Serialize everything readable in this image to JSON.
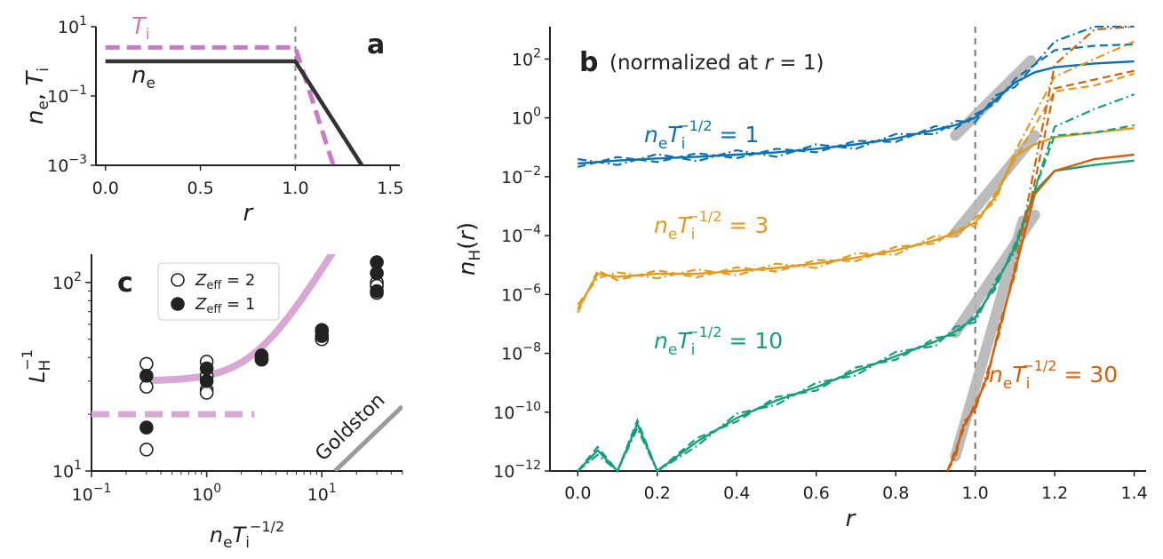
{
  "chart_data": [
    {
      "panel": "a",
      "type": "line",
      "xlabel": "r",
      "ylabel": "n_e, T_i",
      "xlim": [
        -0.05,
        1.55
      ],
      "ylim_log10": [
        -3,
        1
      ],
      "xticks": [
        0.0,
        0.5,
        1.0,
        1.5
      ],
      "xtick_labels": [
        "0.0",
        "0.5",
        "1.0",
        "1.5"
      ],
      "yticks_log10": [
        -3,
        -1,
        1
      ],
      "vline_x": 1.0,
      "series": [
        {
          "name": "T_i",
          "label": "T",
          "label_sub": "i",
          "color": "#cc79c4",
          "style": "dashed",
          "x": [
            0.0,
            1.0,
            1.2
          ],
          "log10_y": [
            0.4,
            0.4,
            -3.0
          ]
        },
        {
          "name": "n_e",
          "label": "n",
          "label_sub": "e",
          "color": "#333333",
          "style": "solid",
          "x": [
            0.0,
            1.0,
            1.35
          ],
          "log10_y": [
            0.0,
            0.0,
            -3.0
          ]
        }
      ]
    },
    {
      "panel": "b",
      "type": "line",
      "note": "(normalized at ",
      "note_var": "r",
      "note_end": " = 1)",
      "xlabel": "r",
      "ylabel": "n_H(r)",
      "xlim": [
        -0.07,
        1.43
      ],
      "ylim_log10": [
        -12,
        3.1
      ],
      "xticks": [
        0.0,
        0.2,
        0.4,
        0.6,
        0.8,
        1.0,
        1.2,
        1.4
      ],
      "xtick_labels": [
        "0.0",
        "0.2",
        "0.4",
        "0.6",
        "0.8",
        "1.0",
        "1.2",
        "1.4"
      ],
      "yticks_log10": [
        -12,
        -10,
        -8,
        -6,
        -4,
        -2,
        0,
        2
      ],
      "vline_x": 1.0,
      "series": [
        {
          "param": "1",
          "color": "#0b72b2",
          "x": [
            0.0,
            0.1,
            0.2,
            0.3,
            0.4,
            0.5,
            0.6,
            0.7,
            0.8,
            0.9,
            0.95,
            1.0,
            1.05,
            1.1,
            1.15,
            1.2,
            1.3,
            1.4
          ],
          "log10_y": [
            -1.55,
            -1.45,
            -1.38,
            -1.32,
            -1.25,
            -1.17,
            -1.05,
            -0.9,
            -0.7,
            -0.4,
            -0.25,
            0.0,
            0.6,
            1.2,
            1.55,
            1.72,
            1.85,
            1.92
          ],
          "dashed_end": [
            2.3,
            2.45,
            2.5
          ],
          "dashdot_end": [
            2.6,
            3.1,
            3.1
          ],
          "fit_x": [
            0.95,
            1.14
          ],
          "fit_log10_y": [
            -0.6,
            1.95
          ]
        },
        {
          "param": "3",
          "color": "#e29b1e",
          "x": [
            0.0,
            0.05,
            0.1,
            0.2,
            0.3,
            0.4,
            0.5,
            0.6,
            0.7,
            0.8,
            0.9,
            0.95,
            1.0,
            1.05,
            1.1,
            1.15,
            1.2,
            1.3,
            1.4
          ],
          "log10_y": [
            -6.5,
            -5.3,
            -5.4,
            -5.3,
            -5.3,
            -5.2,
            -5.1,
            -4.95,
            -4.75,
            -4.5,
            -4.15,
            -3.9,
            -3.55,
            -2.7,
            -1.3,
            -0.9,
            -0.65,
            -0.5,
            -0.35
          ],
          "dashed_end": [
            0.9,
            1.1,
            1.5
          ],
          "dashdot_end": [
            1.4,
            2.0,
            2.6
          ],
          "fit_x": [
            0.95,
            1.15
          ],
          "fit_log10_y": [
            -3.9,
            -0.6
          ]
        },
        {
          "param": "10",
          "color": "#15a07c",
          "x": [
            0.0,
            0.05,
            0.1,
            0.15,
            0.2,
            0.3,
            0.4,
            0.5,
            0.6,
            0.7,
            0.8,
            0.9,
            0.95,
            1.0,
            1.05,
            1.1,
            1.15,
            1.2,
            1.3,
            1.4
          ],
          "log10_y": [
            -12.5,
            -11.3,
            -12.5,
            -10.4,
            -12.5,
            -11.0,
            -10.2,
            -9.6,
            -9.15,
            -8.6,
            -8.1,
            -7.6,
            -7.25,
            -6.8,
            -5.7,
            -4.4,
            -2.5,
            -1.8,
            -1.6,
            -1.45
          ],
          "dashed_end": [
            -0.6,
            -0.5,
            -0.25
          ],
          "dashdot_end": [
            -0.3,
            0.3,
            0.8
          ],
          "fit_x": [
            0.95,
            1.15
          ],
          "fit_log10_y": [
            -7.3,
            -3.3
          ]
        },
        {
          "param": "30",
          "color": "#d1620b",
          "x": [
            0.93,
            0.95,
            0.97,
            1.0,
            1.03,
            1.06,
            1.1,
            1.15,
            1.2,
            1.3,
            1.4
          ],
          "log10_y": [
            -12.5,
            -11.4,
            -10.5,
            -9.8,
            -8.8,
            -7.2,
            -5.2,
            -2.6,
            -1.8,
            -1.4,
            -1.25
          ],
          "dashed_end": [
            1.0,
            1.3,
            1.6
          ],
          "dashdot_end": [
            1.8,
            3.0,
            3.1
          ],
          "fit_x": [
            0.95,
            1.12
          ],
          "fit_log10_y": [
            -11.5,
            -3.5
          ]
        }
      ],
      "curve_label_prefix": "n",
      "curve_label_prefix_sub": "e",
      "curve_label_T": "T",
      "curve_label_T_sub": "i",
      "curve_label_exp": "−1/2",
      "curve_label_eq": " = "
    },
    {
      "panel": "c",
      "type": "scatter",
      "xlabel_parts": {
        "n": "n",
        "n_sub": "e",
        "T": "T",
        "T_sub": "i",
        "exp": "−1/2"
      },
      "ylabel_parts": {
        "L": "L",
        "sub": "H",
        "exp": "−1"
      },
      "xlim_log10": [
        -1,
        1.7
      ],
      "ylim_log10": [
        1,
        2.15
      ],
      "xtick_labels": [
        {
          "base": "10",
          "exp": "−1",
          "log10": -1
        },
        {
          "base": "10",
          "exp": "0",
          "log10": 0
        },
        {
          "base": "10",
          "exp": "1",
          "log10": 1
        }
      ],
      "ytick_labels": [
        {
          "base": "10",
          "exp": "1",
          "log10": 1
        },
        {
          "base": "10",
          "exp": "2",
          "log10": 2
        }
      ],
      "legend": [
        {
          "label": "Z",
          "sub": "eff",
          "eq": " = 2",
          "marker": "open"
        },
        {
          "label": "Z",
          "sub": "eff",
          "eq": " = 1",
          "marker": "filled"
        }
      ],
      "points_zeff2": [
        [
          0.3,
          37
        ],
        [
          0.3,
          28
        ],
        [
          0.3,
          13
        ],
        [
          1.0,
          38
        ],
        [
          1.0,
          32
        ],
        [
          1.0,
          27
        ],
        [
          1.0,
          26
        ],
        [
          3.0,
          40
        ],
        [
          3.0,
          39
        ],
        [
          10.0,
          55
        ],
        [
          10.0,
          50
        ],
        [
          30.0,
          100
        ],
        [
          30.0,
          88
        ],
        [
          30.0,
          96
        ]
      ],
      "points_zeff1": [
        [
          0.3,
          32
        ],
        [
          0.3,
          17
        ],
        [
          1.0,
          35
        ],
        [
          1.0,
          30
        ],
        [
          3.0,
          41
        ],
        [
          3.0,
          39
        ],
        [
          10.0,
          56
        ],
        [
          10.0,
          52
        ],
        [
          30.0,
          128
        ],
        [
          30.0,
          112
        ],
        [
          30.0,
          90
        ]
      ],
      "fit_curve": {
        "color": "#d7a8d3",
        "A": 30,
        "B": 2.5,
        "x_range": [
          0.3,
          50
        ]
      },
      "dashed_level": {
        "y": 20,
        "x_range": [
          0.1,
          2.6
        ],
        "color": "#d7a8d3"
      },
      "goldston": {
        "label": "Goldston",
        "color": "#9a9a9a",
        "points": [
          [
            13,
            10
          ],
          [
            50,
            22
          ]
        ]
      }
    }
  ]
}
